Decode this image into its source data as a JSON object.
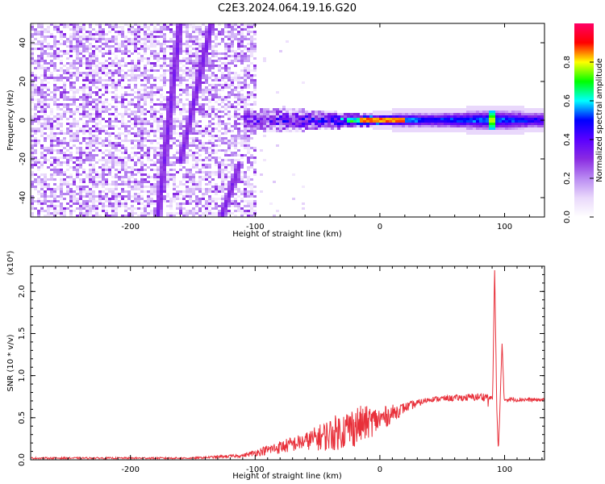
{
  "title": "C2E3.2024.064.19.16.G20",
  "chart_data": [
    {
      "type": "heatmap",
      "xlabel": "Height of straight line (km)",
      "ylabel": "Frequency (Hz)",
      "xlim": [
        -280,
        132
      ],
      "ylim": [
        -50,
        50
      ],
      "xticks": [
        -200,
        -100,
        0,
        100
      ],
      "yticks": [
        -40,
        -20,
        0,
        20,
        40
      ],
      "colorbar": {
        "label": "Normalized spectral amplitude",
        "range": [
          0,
          1
        ],
        "ticks": [
          "0.0",
          "0.2",
          "0.4",
          "0.6",
          "0.8"
        ],
        "colors": [
          "#ffffff",
          "#e9d8fb",
          "#b98af2",
          "#8a2be2",
          "#5a00ff",
          "#0000ff",
          "#00ffff",
          "#00ff00",
          "#ffff00",
          "#ff0000",
          "#ff0066"
        ]
      },
      "features": {
        "noise_region_km": [
          -280,
          -100
        ],
        "diagonal_streaks": [
          {
            "x_top": -160,
            "y_top": 50,
            "x_bottom": -178,
            "y_bottom": -50
          },
          {
            "x_top": -135,
            "y_top": 50,
            "x_bottom": -160,
            "y_bottom": -22
          },
          {
            "x_top": -112,
            "y_top": -22,
            "x_bottom": -127,
            "y_bottom": -50
          }
        ],
        "central_band": [
          {
            "x": -110,
            "halfwidth_hz": 6,
            "level": 0.3
          },
          {
            "x": -70,
            "halfwidth_hz": 6,
            "level": 0.4
          },
          {
            "x": -40,
            "halfwidth_hz": 5,
            "level": 0.45
          },
          {
            "x": -20,
            "halfwidth_hz": 3.5,
            "level": 0.7
          },
          {
            "x": 0,
            "halfwidth_hz": 3,
            "level": 0.8
          },
          {
            "x": 40,
            "halfwidth_hz": 3.5,
            "level": 0.55
          },
          {
            "x": 90,
            "halfwidth_hz": 5,
            "level": 0.6
          },
          {
            "x": 132,
            "halfwidth_hz": 4,
            "level": 0.5
          }
        ]
      }
    },
    {
      "type": "line",
      "xlabel": "Height of straight line (km)",
      "ylabel": "SNR (10 * v/v)",
      "scale_label": "(x10⁴)",
      "xlim": [
        -280,
        132
      ],
      "ylim": [
        0,
        2.3
      ],
      "xticks": [
        -200,
        -100,
        0,
        100
      ],
      "yticks": [
        "0.0",
        "0.5",
        "1.0",
        "1.5",
        "2.0"
      ],
      "color": "#e8303a",
      "envelope": [
        {
          "x": -280,
          "y": 0.02,
          "noise": 0.01
        },
        {
          "x": -150,
          "y": 0.02,
          "noise": 0.01
        },
        {
          "x": -110,
          "y": 0.05,
          "noise": 0.02
        },
        {
          "x": -80,
          "y": 0.15,
          "noise": 0.08
        },
        {
          "x": -60,
          "y": 0.22,
          "noise": 0.1
        },
        {
          "x": -40,
          "y": 0.3,
          "noise": 0.2
        },
        {
          "x": -20,
          "y": 0.4,
          "noise": 0.25
        },
        {
          "x": 0,
          "y": 0.48,
          "noise": 0.15
        },
        {
          "x": 20,
          "y": 0.62,
          "noise": 0.06
        },
        {
          "x": 40,
          "y": 0.72,
          "noise": 0.03
        },
        {
          "x": 85,
          "y": 0.75,
          "noise": 0.05
        },
        {
          "x": 100,
          "y": 0.72,
          "noise": 0.03
        },
        {
          "x": 132,
          "y": 0.71,
          "noise": 0.02
        }
      ],
      "spikes": [
        {
          "x": 92,
          "y": 2.3
        },
        {
          "x": 95,
          "y": 0.1
        },
        {
          "x": 98,
          "y": 1.38
        }
      ]
    }
  ]
}
